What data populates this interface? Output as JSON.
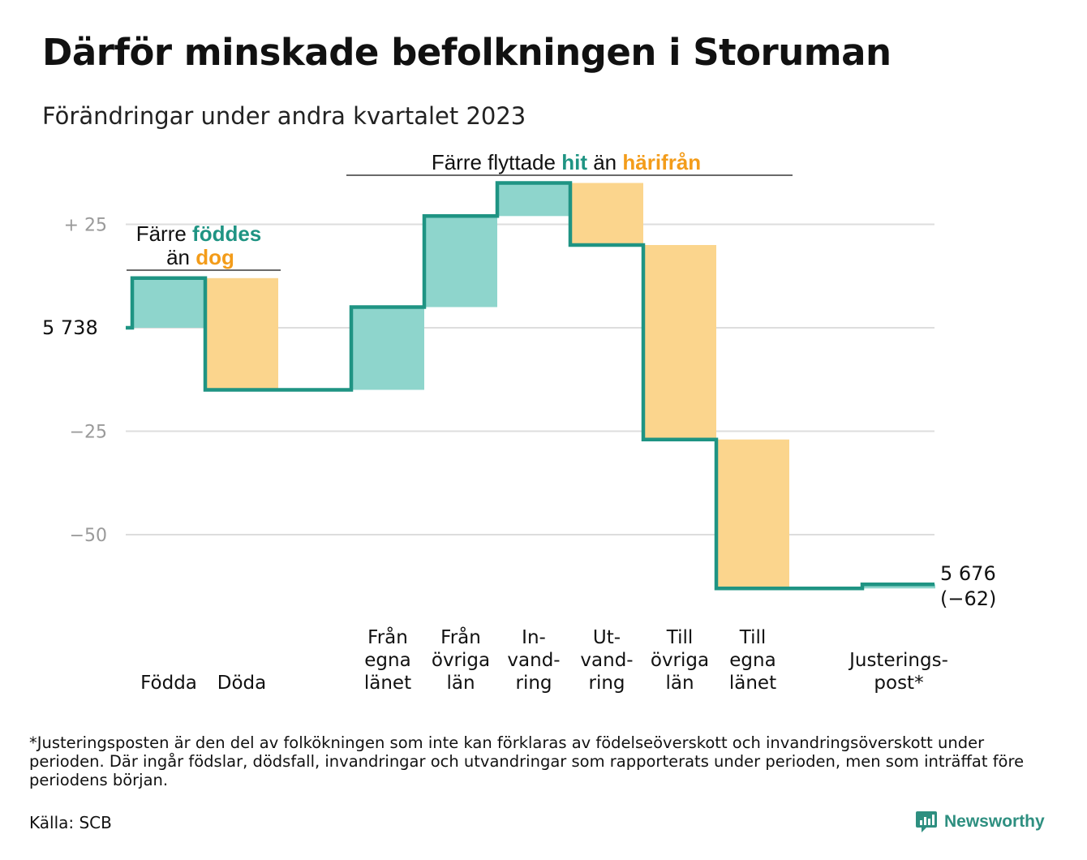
{
  "title": "Därför minskade befolkningen i Storuman",
  "subtitle": "Förändringar under andra kvartalet 2023",
  "annotations": {
    "births": {
      "line1_a": "Färre ",
      "line1_b": "föddes",
      "line2_a": "än ",
      "line2_b": "dog"
    },
    "moves": {
      "a": "Färre flyttade ",
      "b": "hit",
      "c": " än ",
      "d": "härifrån"
    }
  },
  "colors": {
    "line": "#1f9483",
    "increase": "#8ed5cc",
    "decrease": "#fbd58d",
    "grid": "#dddddd",
    "teal_text": "#1f9483",
    "orange_text": "#f39c1a"
  },
  "chart_data": {
    "type": "waterfall",
    "start_value": 5738,
    "start_label": "5  738",
    "end_label_value": "5 676",
    "end_label_change": "(−62)",
    "y_ticks": [
      {
        "value": 25,
        "label": "+  25"
      },
      {
        "value": 0,
        "label": ""
      },
      {
        "value": -25,
        "label": "−25"
      },
      {
        "value": -50,
        "label": "−50"
      }
    ],
    "ylim": [
      -70,
      35
    ],
    "steps": [
      {
        "label": [
          "",
          "",
          "Födda"
        ],
        "value": 12,
        "kind": "increase"
      },
      {
        "label": [
          "",
          "",
          "Döda"
        ],
        "value": -27,
        "kind": "decrease"
      },
      {
        "label": [
          "",
          "",
          ""
        ],
        "value": 0,
        "kind": "gap"
      },
      {
        "label": [
          "Från",
          "egna",
          "länet"
        ],
        "value": 20,
        "kind": "increase"
      },
      {
        "label": [
          "Från",
          "övriga",
          "län"
        ],
        "value": 22,
        "kind": "increase"
      },
      {
        "label": [
          "In-",
          "vand-",
          "ring"
        ],
        "value": 8,
        "kind": "increase"
      },
      {
        "label": [
          "Ut-",
          "vand-",
          "ring"
        ],
        "value": -15,
        "kind": "decrease"
      },
      {
        "label": [
          "Till",
          "övriga",
          "län"
        ],
        "value": -47,
        "kind": "decrease"
      },
      {
        "label": [
          "Till",
          "egna",
          "länet"
        ],
        "value": -36,
        "kind": "decrease"
      },
      {
        "label": [
          "",
          "",
          ""
        ],
        "value": 0,
        "kind": "gap"
      },
      {
        "label": [
          "",
          "Justerings-",
          "post*"
        ],
        "value": 1,
        "kind": "increase"
      }
    ]
  },
  "footnote": "*Justeringsposten är den del av folkökningen som inte kan förklaras av födelseöverskott och invandringsöverskott under perioden. Där ingår födslar, dödsfall, invandringar och utvandringar som rapporterats under perioden, men som inträffat före periodens början.",
  "source": "Källa: SCB",
  "brand": {
    "name": "Newsworthy",
    "icon": "chart-bubble-icon"
  }
}
